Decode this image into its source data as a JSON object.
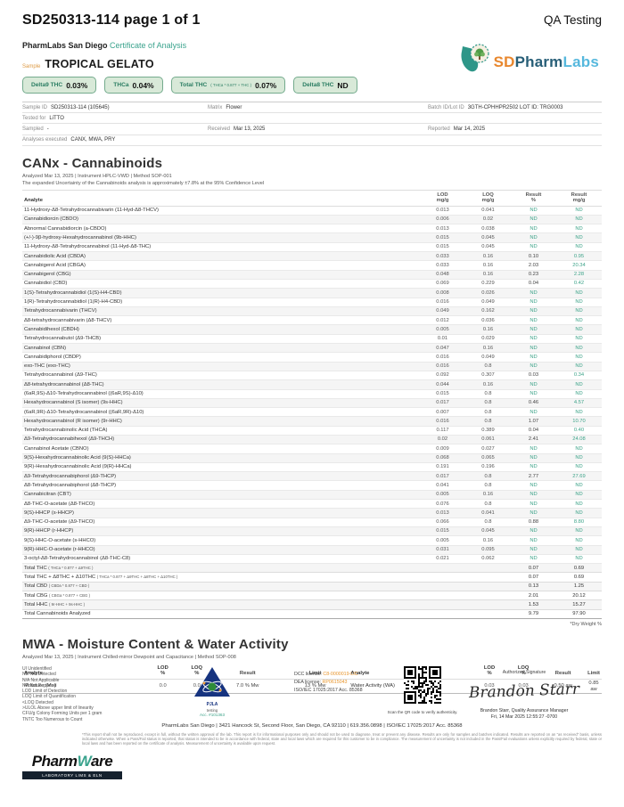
{
  "header": {
    "doc_id": "SD250313-114 page 1 of 1",
    "qa": "QA Testing",
    "lab_name": "PharmLabs San Diego",
    "cert": "Certificate of Analysis",
    "sample_label": "Sample",
    "sample_name": "TROPICAL GELATO",
    "logo": {
      "sd": "SD",
      "pharm": "Pharm",
      "labs": "Labs"
    }
  },
  "badges": [
    {
      "label": "Delta9 THC",
      "formula": "",
      "value": "0.03%"
    },
    {
      "label": "THCa",
      "formula": "",
      "value": "0.04%"
    },
    {
      "label": "Total THC",
      "formula": "( THCa * 0.877 + THC )",
      "value": "0.07%"
    },
    {
      "label": "Delta8 THC",
      "formula": "",
      "value": "ND"
    }
  ],
  "sample_info": [
    [
      {
        "label": "Sample ID",
        "value": "SD250313-114 (105645)",
        "span": 1
      },
      {
        "label": "Matrix",
        "value": "Flower",
        "span": 1
      },
      {
        "label": "Batch ID/Lot ID",
        "value": "3GTH-CPHHPR2502 LOT ID: TRG0003",
        "span": 2
      }
    ],
    [
      {
        "label": "Tested for",
        "value": "LiTTO",
        "span": 4
      }
    ],
    [
      {
        "label": "Sampled",
        "value": "-",
        "span": 1
      },
      {
        "label": "Received",
        "value": "Mar 13, 2025",
        "span": 1
      },
      {
        "label": "Reported",
        "value": "Mar 14, 2025",
        "span": 2
      }
    ],
    [
      {
        "label": "Analyses executed",
        "value": "CANX, MWA, PRY",
        "span": 4
      }
    ]
  ],
  "canx": {
    "title": "CANx - Cannabinoids",
    "meta": "Analyzed Mar 13, 2025  |  Instrument HPLC-VWD  | Method SOP-001",
    "uncertainty": "The expanded Uncertainty of the Cannabinoids analysis is approximately ±7.8% at the 95% Confidence Level",
    "headers": [
      [
        "Analyte"
      ],
      [
        "LOD",
        "mg/g"
      ],
      [
        "LOQ",
        "mg/g"
      ],
      [
        "Result",
        "%"
      ],
      [
        "Result",
        "mg/g"
      ]
    ],
    "rows": [
      [
        "11-Hydroxy-Δ8-Tetrahydrocannabivarin (11-Hyd-Δ8-THCV)",
        "",
        "0.013",
        "0.041",
        "ND",
        "ND"
      ],
      [
        "Cannabidiorcin (CBDO)",
        "",
        "0.006",
        "0.02",
        "ND",
        "ND"
      ],
      [
        "Abnormal Cannabidiorcin (a-CBDO)",
        "",
        "0.013",
        "0.038",
        "ND",
        "ND"
      ],
      [
        "(+/-)-9β-hydroxy-Hexahydrocannabinol (9b-HHC)",
        "",
        "0.015",
        "0.045",
        "ND",
        "ND"
      ],
      [
        "11-Hydroxy-Δ8-Tetrahydrocannabinol (11-Hyd-Δ8-THC)",
        "",
        "0.015",
        "0.045",
        "ND",
        "ND"
      ],
      [
        "Cannabidiolic Acid (CBDA)",
        "",
        "0.033",
        "0.16",
        "0.10",
        "0.95"
      ],
      [
        "Cannabigerol Acid (CBGA)",
        "",
        "0.033",
        "0.16",
        "2.03",
        "20.34"
      ],
      [
        "Cannabigerol (CBG)",
        "",
        "0.048",
        "0.16",
        "0.23",
        "2.28"
      ],
      [
        "Cannabidiol (CBD)",
        "",
        "0.069",
        "0.229",
        "0.04",
        "0.42"
      ],
      [
        "1(S)-Tetrahydrocannabidiol (1(S)-H4-CBD)",
        "",
        "0.008",
        "0.026",
        "ND",
        "ND"
      ],
      [
        "1(R)-Tetrahydrocannabidiol (1(R)-H4-CBD)",
        "",
        "0.016",
        "0.049",
        "ND",
        "ND"
      ],
      [
        "Tetrahydrocannabivarin (THCV)",
        "",
        "0.049",
        "0.162",
        "ND",
        "ND"
      ],
      [
        "Δ8-tetrahydrocannabivarin (Δ8-THCV)",
        "",
        "0.012",
        "0.036",
        "ND",
        "ND"
      ],
      [
        "Cannabidihexol (CBDH)",
        "",
        "0.005",
        "0.16",
        "ND",
        "ND"
      ],
      [
        "Tetrahydrocannabutol (Δ9-THCB)",
        "",
        "0.01",
        "0.029",
        "ND",
        "ND"
      ],
      [
        "Cannabinol (CBN)",
        "",
        "0.047",
        "0.16",
        "ND",
        "ND"
      ],
      [
        "Cannabidiphorol (CBDP)",
        "",
        "0.016",
        "0.049",
        "ND",
        "ND"
      ],
      [
        "exo-THC (exo-THC)",
        "",
        "0.016",
        "0.8",
        "ND",
        "ND"
      ],
      [
        "Tetrahydrocannabinol (Δ9-THC)",
        "",
        "0.092",
        "0.307",
        "0.03",
        "0.34"
      ],
      [
        "Δ8-tetrahydrocannabinol (Δ8-THC)",
        "",
        "0.044",
        "0.16",
        "ND",
        "ND"
      ],
      [
        "(6aR,9S)-Δ10-Tetrahydrocannabinol ((6aR,9S)-Δ10)",
        "",
        "0.015",
        "0.8",
        "ND",
        "ND"
      ],
      [
        "Hexahydrocannabinol (S isomer) (9s-HHC)",
        "",
        "0.017",
        "0.8",
        "0.46",
        "4.57"
      ],
      [
        "(6aR,9R)-Δ10-Tetrahydrocannabinol ((6aR,9R)-Δ10)",
        "",
        "0.007",
        "0.8",
        "ND",
        "ND"
      ],
      [
        "Hexahydrocannabinol (R isomer) (9r-HHC)",
        "",
        "0.016",
        "0.8",
        "1.07",
        "10.70"
      ],
      [
        "Tetrahydrocannabinolic Acid (THCA)",
        "",
        "0.117",
        "0.389",
        "0.04",
        "0.40"
      ],
      [
        "Δ9-Tetrahydrocannabihexol (Δ9-THCH)",
        "",
        "0.02",
        "0.061",
        "2.41",
        "24.08"
      ],
      [
        "Cannabinol Acetate (CBNO)",
        "",
        "0.009",
        "0.027",
        "ND",
        "ND"
      ],
      [
        "9(S)-Hexahydrocannabinolic Acid (9(S)-HHCa)",
        "",
        "0.068",
        "0.065",
        "ND",
        "ND"
      ],
      [
        "9(R)-Hexahydrocannabinolic Acid (9(R)-HHCa)",
        "",
        "0.191",
        "0.196",
        "ND",
        "ND"
      ],
      [
        "Δ9-Tetrahydrocannabiphorol (Δ9-THCP)",
        "",
        "0.017",
        "0.8",
        "2.77",
        "27.69"
      ],
      [
        "Δ8-Tetrahydrocannabiphorol (Δ8-THCP)",
        "",
        "0.041",
        "0.8",
        "ND",
        "ND"
      ],
      [
        "Cannabicitran (CBT)",
        "",
        "0.005",
        "0.16",
        "ND",
        "ND"
      ],
      [
        "Δ8-THC-O-acetate (Δ8-THCO)",
        "",
        "0.076",
        "0.8",
        "ND",
        "ND"
      ],
      [
        "9(S)-HHCP (s-HHCP)",
        "",
        "0.013",
        "0.041",
        "ND",
        "ND"
      ],
      [
        "Δ9-THC-O-acetate (Δ9-THCO)",
        "",
        "0.066",
        "0.8",
        "0.88",
        "8.80"
      ],
      [
        "9(R)-HHCP (r-HHCP)",
        "",
        "0.015",
        "0.045",
        "ND",
        "ND"
      ],
      [
        "9(S)-HHC-O-acetate (s-HHCO)",
        "",
        "0.005",
        "0.16",
        "ND",
        "ND"
      ],
      [
        "9(R)-HHC-O-acetate (r-HHCO)",
        "",
        "0.031",
        "0.095",
        "ND",
        "ND"
      ],
      [
        "3-octyl-Δ8-Tetrahydrocannabinol (Δ8-THC-C8)",
        "",
        "0.021",
        "0.062",
        "ND",
        "ND"
      ],
      [
        "Total THC",
        "( THCa * 0.877 + Δ9THC )",
        "",
        "",
        "0.07",
        "0.69"
      ],
      [
        "Total THC + Δ8THC + Δ10THC",
        "( THCa * 0.877 + Δ9THC + Δ8THC + Δ10THC )",
        "",
        "",
        "0.07",
        "0.69"
      ],
      [
        "Total CBD",
        "( CBDa * 0.877 + CBD )",
        "",
        "",
        "0.13",
        "1.25"
      ],
      [
        "Total CBG",
        "( CBGa * 0.877 + CBG )",
        "",
        "",
        "2.01",
        "20.12"
      ],
      [
        "Total HHC",
        "( 9r-HHC + 9s-HHC )",
        "",
        "",
        "1.53",
        "15.27"
      ],
      [
        "Total Cannabinoids Analyzed",
        "",
        "",
        "",
        "9.79",
        "97.90"
      ]
    ],
    "dry_note": "*Dry Weight %"
  },
  "mwa": {
    "title": "MWA - Moisture Content & Water Activity",
    "meta": "Analyzed Mar 13, 2025  |  Instrument Chilled-mirror Dewpoint and Capacitance  | Method SOP-008",
    "headers": [
      [
        "Analyte"
      ],
      [
        "LOD",
        "%"
      ],
      [
        "LOQ",
        "%"
      ],
      [
        "Result"
      ],
      [
        "Limit"
      ],
      [
        "Analyte"
      ],
      [
        "LOD",
        "%"
      ],
      [
        "LOQ",
        "%"
      ],
      [
        "Result"
      ],
      [
        "Limit"
      ]
    ],
    "row": [
      "Moisture (Mo)",
      "0.0",
      "0.0",
      "7.0 % Mw",
      "13 % Mw",
      "Water Activity (WA)",
      "0.03",
      "0.03",
      "0.50 aw",
      "0.85 aw"
    ]
  },
  "footer": {
    "legend": [
      "UI Unidentified",
      "ND Not Detected",
      "N/A Not Applicable",
      "NR Not Reported",
      "LOD Limit of Detection",
      "LOQ Limit of Quantification",
      "<LOQ Detected",
      ">ULOL Above upper limit of linearity",
      "CFU/g Colony Forming Units per 1 gram",
      "TNTC Too Numerous to Count"
    ],
    "pjla": {
      "name": "PJLA",
      "sub": "testing",
      "acc": "Acc. #101363"
    },
    "licenses": [
      {
        "label": "DCC license: ",
        "value": "C8-0000019-LIC",
        "orange": true
      },
      {
        "label": "DEA license: ",
        "value": "RP0615043",
        "orange": true
      },
      {
        "label": "ISO/IEC 17025:2017 Acc. 85368",
        "value": "",
        "orange": false
      }
    ],
    "qr_caption": "Scan the QR code to verify authenticity.",
    "sig_label": "Authorized Signature",
    "sig_script": "Brandon Starr",
    "sig_name": "Brandon Starr, Quality Assurance Manager",
    "sig_date": "Fri, 14 Mar 2025 12:55:27 -0700",
    "address": "PharmLabs San Diego | 3421 Hancock St, Second Floor, San Diego, CA 92110 | 619.356.0898 | ISO/IEC 17025:2017 Acc. 85368",
    "disclaimer": "*This report shall not be reproduced, except in full, without the written approval of the lab. This report is for informational purposes only and should not be used to diagnose, treat or prevent any disease. Results are only for samples and batches indicated. Results are reported on an “as received” basis, unless indicated otherwise. When a Pass/Fail status is reported, that status is intended to be in accordance with federal, state and local laws which are required for this customer to be in compliance. The measurement of uncertainty is not included in the Pass/Fail evaluations unless explicitly required by federal, state or local laws and has been reported on the certificate of analysis. Measurement of uncertainty is available upon request.",
    "pharmware": {
      "p1": "Pharm",
      "w": "W",
      "p2": "are",
      "bar": "LABORATORY LIMS & ELN"
    }
  },
  "colors": {
    "accent_teal": "#3da389",
    "accent_orange": "#e8962e",
    "badge_bg": "#d8e9d8",
    "badge_border": "#74ab8d"
  }
}
